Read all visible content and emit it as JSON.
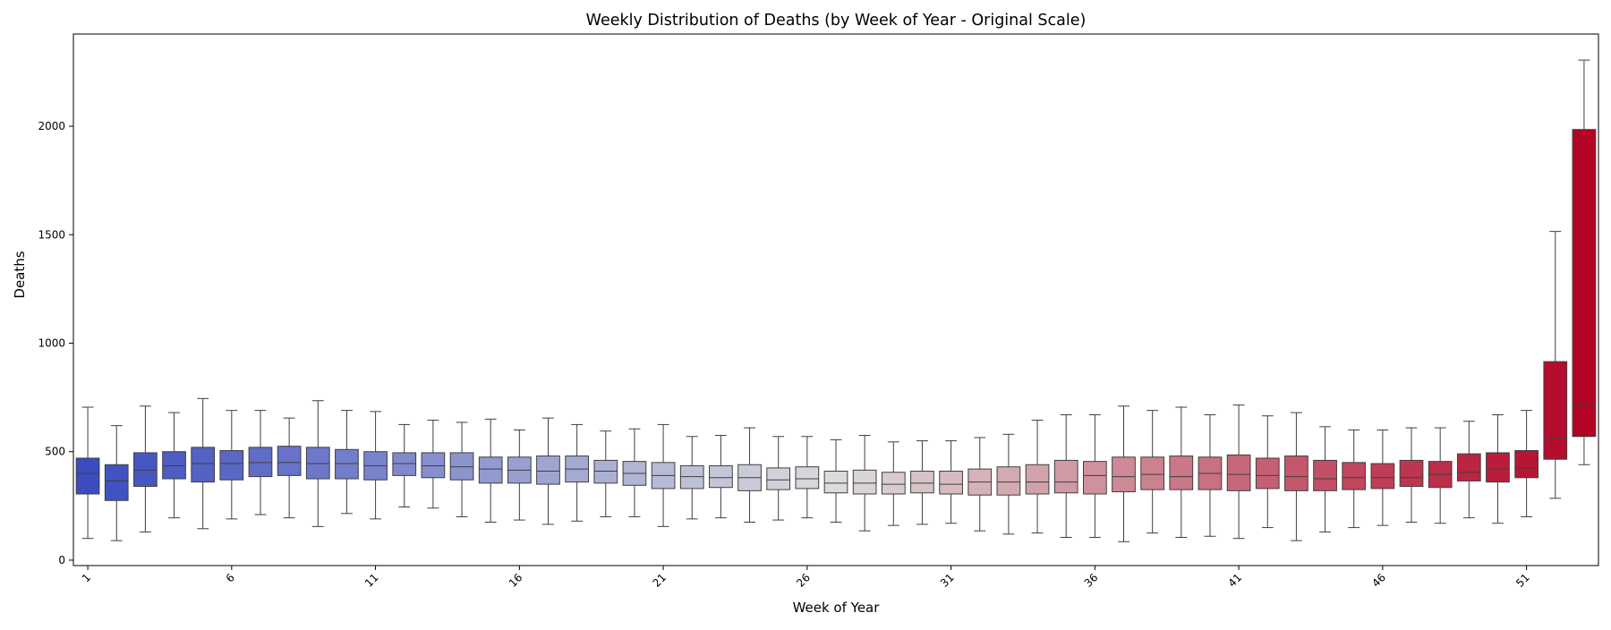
{
  "chart_data": {
    "type": "box",
    "title": "Weekly Distribution of Deaths (by Week of Year - Original Scale)",
    "xlabel": "Week of Year",
    "ylabel": "Deaths",
    "ylim": [
      -25,
      2425
    ],
    "y_ticks": [
      0,
      500,
      1000,
      1500,
      2000
    ],
    "x_tick_weeks": [
      1,
      6,
      11,
      16,
      21,
      26,
      31,
      36,
      41,
      46,
      51
    ],
    "x_tick_rotation_deg": -45,
    "grid": false,
    "legend": "none",
    "palette": "coolwarm",
    "palette_stops": [
      "#3b4cc0",
      "#dddcdc",
      "#b40426"
    ],
    "box_edge_color": "#3f3f3f",
    "boxes": [
      {
        "week": 1,
        "whisker_low": 100,
        "q1": 305,
        "median": 400,
        "q3": 470,
        "whisker_high": 705
      },
      {
        "week": 2,
        "whisker_low": 90,
        "q1": 275,
        "median": 365,
        "q3": 440,
        "whisker_high": 620
      },
      {
        "week": 3,
        "whisker_low": 130,
        "q1": 340,
        "median": 415,
        "q3": 495,
        "whisker_high": 710
      },
      {
        "week": 4,
        "whisker_low": 195,
        "q1": 375,
        "median": 435,
        "q3": 500,
        "whisker_high": 680
      },
      {
        "week": 5,
        "whisker_low": 145,
        "q1": 360,
        "median": 445,
        "q3": 520,
        "whisker_high": 745
      },
      {
        "week": 6,
        "whisker_low": 190,
        "q1": 370,
        "median": 445,
        "q3": 505,
        "whisker_high": 690
      },
      {
        "week": 7,
        "whisker_low": 210,
        "q1": 385,
        "median": 450,
        "q3": 520,
        "whisker_high": 690
      },
      {
        "week": 8,
        "whisker_low": 195,
        "q1": 390,
        "median": 450,
        "q3": 525,
        "whisker_high": 655
      },
      {
        "week": 9,
        "whisker_low": 155,
        "q1": 375,
        "median": 445,
        "q3": 520,
        "whisker_high": 735
      },
      {
        "week": 10,
        "whisker_low": 215,
        "q1": 375,
        "median": 445,
        "q3": 510,
        "whisker_high": 690
      },
      {
        "week": 11,
        "whisker_low": 190,
        "q1": 370,
        "median": 435,
        "q3": 500,
        "whisker_high": 685
      },
      {
        "week": 12,
        "whisker_low": 245,
        "q1": 390,
        "median": 445,
        "q3": 495,
        "whisker_high": 625
      },
      {
        "week": 13,
        "whisker_low": 240,
        "q1": 380,
        "median": 435,
        "q3": 495,
        "whisker_high": 645
      },
      {
        "week": 14,
        "whisker_low": 200,
        "q1": 370,
        "median": 430,
        "q3": 495,
        "whisker_high": 635
      },
      {
        "week": 15,
        "whisker_low": 175,
        "q1": 355,
        "median": 420,
        "q3": 475,
        "whisker_high": 650
      },
      {
        "week": 16,
        "whisker_low": 185,
        "q1": 355,
        "median": 415,
        "q3": 475,
        "whisker_high": 600
      },
      {
        "week": 17,
        "whisker_low": 165,
        "q1": 350,
        "median": 410,
        "q3": 480,
        "whisker_high": 655
      },
      {
        "week": 18,
        "whisker_low": 180,
        "q1": 360,
        "median": 420,
        "q3": 480,
        "whisker_high": 625
      },
      {
        "week": 19,
        "whisker_low": 200,
        "q1": 355,
        "median": 410,
        "q3": 460,
        "whisker_high": 595
      },
      {
        "week": 20,
        "whisker_low": 200,
        "q1": 345,
        "median": 400,
        "q3": 455,
        "whisker_high": 605
      },
      {
        "week": 21,
        "whisker_low": 155,
        "q1": 330,
        "median": 390,
        "q3": 450,
        "whisker_high": 625
      },
      {
        "week": 22,
        "whisker_low": 190,
        "q1": 330,
        "median": 385,
        "q3": 435,
        "whisker_high": 570
      },
      {
        "week": 23,
        "whisker_low": 195,
        "q1": 335,
        "median": 380,
        "q3": 435,
        "whisker_high": 575
      },
      {
        "week": 24,
        "whisker_low": 175,
        "q1": 320,
        "median": 380,
        "q3": 440,
        "whisker_high": 610
      },
      {
        "week": 25,
        "whisker_low": 185,
        "q1": 325,
        "median": 370,
        "q3": 425,
        "whisker_high": 570
      },
      {
        "week": 26,
        "whisker_low": 195,
        "q1": 330,
        "median": 375,
        "q3": 430,
        "whisker_high": 570
      },
      {
        "week": 27,
        "whisker_low": 175,
        "q1": 310,
        "median": 355,
        "q3": 410,
        "whisker_high": 555
      },
      {
        "week": 28,
        "whisker_low": 135,
        "q1": 305,
        "median": 355,
        "q3": 415,
        "whisker_high": 575
      },
      {
        "week": 29,
        "whisker_low": 160,
        "q1": 305,
        "median": 350,
        "q3": 405,
        "whisker_high": 545
      },
      {
        "week": 30,
        "whisker_low": 165,
        "q1": 310,
        "median": 355,
        "q3": 410,
        "whisker_high": 550
      },
      {
        "week": 31,
        "whisker_low": 170,
        "q1": 305,
        "median": 350,
        "q3": 410,
        "whisker_high": 550
      },
      {
        "week": 32,
        "whisker_low": 135,
        "q1": 300,
        "median": 360,
        "q3": 420,
        "whisker_high": 565
      },
      {
        "week": 33,
        "whisker_low": 120,
        "q1": 300,
        "median": 360,
        "q3": 430,
        "whisker_high": 580
      },
      {
        "week": 34,
        "whisker_low": 125,
        "q1": 305,
        "median": 360,
        "q3": 440,
        "whisker_high": 645
      },
      {
        "week": 35,
        "whisker_low": 105,
        "q1": 310,
        "median": 360,
        "q3": 460,
        "whisker_high": 670
      },
      {
        "week": 36,
        "whisker_low": 105,
        "q1": 305,
        "median": 390,
        "q3": 455,
        "whisker_high": 670
      },
      {
        "week": 37,
        "whisker_low": 85,
        "q1": 315,
        "median": 385,
        "q3": 475,
        "whisker_high": 710
      },
      {
        "week": 38,
        "whisker_low": 125,
        "q1": 325,
        "median": 395,
        "q3": 475,
        "whisker_high": 690
      },
      {
        "week": 39,
        "whisker_low": 105,
        "q1": 325,
        "median": 385,
        "q3": 480,
        "whisker_high": 705
      },
      {
        "week": 40,
        "whisker_low": 110,
        "q1": 325,
        "median": 400,
        "q3": 475,
        "whisker_high": 670
      },
      {
        "week": 41,
        "whisker_low": 100,
        "q1": 320,
        "median": 395,
        "q3": 485,
        "whisker_high": 715
      },
      {
        "week": 42,
        "whisker_low": 150,
        "q1": 330,
        "median": 390,
        "q3": 470,
        "whisker_high": 665
      },
      {
        "week": 43,
        "whisker_low": 90,
        "q1": 320,
        "median": 385,
        "q3": 480,
        "whisker_high": 680
      },
      {
        "week": 44,
        "whisker_low": 130,
        "q1": 320,
        "median": 375,
        "q3": 460,
        "whisker_high": 615
      },
      {
        "week": 45,
        "whisker_low": 150,
        "q1": 325,
        "median": 380,
        "q3": 450,
        "whisker_high": 600
      },
      {
        "week": 46,
        "whisker_low": 160,
        "q1": 330,
        "median": 380,
        "q3": 445,
        "whisker_high": 600
      },
      {
        "week": 47,
        "whisker_low": 175,
        "q1": 340,
        "median": 380,
        "q3": 460,
        "whisker_high": 610
      },
      {
        "week": 48,
        "whisker_low": 170,
        "q1": 335,
        "median": 395,
        "q3": 455,
        "whisker_high": 610
      },
      {
        "week": 49,
        "whisker_low": 195,
        "q1": 365,
        "median": 405,
        "q3": 490,
        "whisker_high": 640
      },
      {
        "week": 50,
        "whisker_low": 170,
        "q1": 360,
        "median": 420,
        "q3": 495,
        "whisker_high": 670
      },
      {
        "week": 51,
        "whisker_low": 200,
        "q1": 380,
        "median": 425,
        "q3": 505,
        "whisker_high": 690
      },
      {
        "week": 52,
        "whisker_low": 285,
        "q1": 465,
        "median": 560,
        "q3": 915,
        "whisker_high": 1515
      },
      {
        "week": 53,
        "whisker_low": 440,
        "q1": 570,
        "median": 715,
        "q3": 1985,
        "whisker_high": 2305
      }
    ]
  }
}
